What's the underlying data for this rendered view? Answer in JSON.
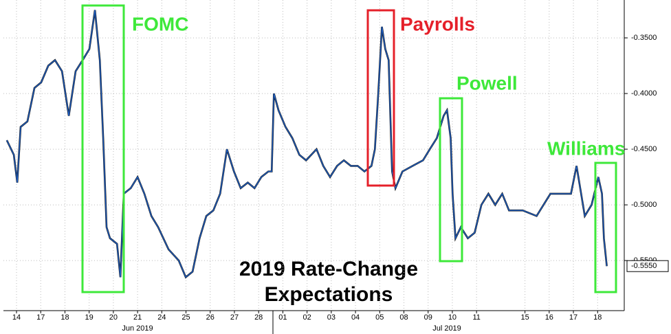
{
  "chart_data": {
    "type": "line",
    "title_lines": [
      "2019 Rate-Change",
      "Expectations"
    ],
    "series": [
      {
        "color": "#1f5fc4",
        "x": [
          -0.4,
          -0.11,
          0.03,
          0.17,
          0.45,
          0.74,
          1.02,
          1.31,
          1.59,
          1.88,
          2.16,
          2.44,
          2.73,
          3.01,
          3.24,
          3.44,
          3.58,
          3.72,
          3.86,
          4.15,
          4.29,
          4.43,
          4.72,
          5.0,
          5.28,
          5.57,
          5.85,
          6.28,
          6.7,
          6.99,
          7.27,
          7.56,
          7.84,
          8.13,
          8.41,
          8.69,
          8.98,
          9.26,
          9.55,
          9.83,
          10.11,
          10.4,
          10.54,
          10.63,
          10.82,
          11.11,
          11.39,
          11.68,
          11.96,
          12.39,
          12.67,
          12.95,
          13.24,
          13.52,
          13.81,
          14.09,
          14.37,
          14.66,
          14.8,
          14.94,
          15.09,
          15.23,
          15.37,
          15.51,
          15.65,
          15.94,
          16.36,
          16.79,
          17.07,
          17.36,
          17.64,
          17.78,
          17.93,
          18.01,
          18.13,
          18.35,
          18.64,
          18.92,
          19.2,
          19.49,
          19.77,
          20.06,
          20.34,
          20.91,
          21.48,
          22.05,
          22.33,
          22.61,
          22.9,
          23.13,
          23.32,
          23.47,
          23.75,
          24.03,
          24.18,
          24.26,
          24.38
        ],
        "values": [
          -0.442,
          -0.455,
          -0.48,
          -0.43,
          -0.425,
          -0.395,
          -0.39,
          -0.375,
          -0.37,
          -0.38,
          -0.42,
          -0.38,
          -0.37,
          -0.36,
          -0.325,
          -0.37,
          -0.44,
          -0.52,
          -0.53,
          -0.535,
          -0.565,
          -0.49,
          -0.485,
          -0.475,
          -0.49,
          -0.51,
          -0.52,
          -0.54,
          -0.55,
          -0.565,
          -0.56,
          -0.53,
          -0.51,
          -0.505,
          -0.49,
          -0.45,
          -0.47,
          -0.485,
          -0.48,
          -0.485,
          -0.475,
          -0.47,
          -0.47,
          -0.4,
          -0.415,
          -0.43,
          -0.44,
          -0.455,
          -0.46,
          -0.45,
          -0.465,
          -0.475,
          -0.465,
          -0.46,
          -0.465,
          -0.465,
          -0.47,
          -0.465,
          -0.45,
          -0.4,
          -0.34,
          -0.36,
          -0.37,
          -0.47,
          -0.485,
          -0.47,
          -0.465,
          -0.46,
          -0.45,
          -0.44,
          -0.42,
          -0.415,
          -0.44,
          -0.49,
          -0.53,
          -0.52,
          -0.53,
          -0.525,
          -0.5,
          -0.49,
          -0.5,
          -0.49,
          -0.505,
          -0.505,
          -0.51,
          -0.49,
          -0.49,
          -0.49,
          -0.49,
          -0.465,
          -0.49,
          -0.51,
          -0.5,
          -0.475,
          -0.49,
          -0.53,
          -0.555
        ]
      }
    ],
    "xlim": [
      -0.54,
      25.1
    ],
    "ylim": [
      -0.316,
      -0.595
    ],
    "xticks": [
      {
        "value": 0,
        "label": "14"
      },
      {
        "value": 1,
        "label": "17"
      },
      {
        "value": 2,
        "label": "18"
      },
      {
        "value": 3,
        "label": "19"
      },
      {
        "value": 4,
        "label": "20"
      },
      {
        "value": 5,
        "label": "21"
      },
      {
        "value": 6,
        "label": "24"
      },
      {
        "value": 7,
        "label": "25"
      },
      {
        "value": 8,
        "label": "26"
      },
      {
        "value": 9,
        "label": "27"
      },
      {
        "value": 10,
        "label": "28"
      },
      {
        "value": 11,
        "label": "01"
      },
      {
        "value": 12,
        "label": "02"
      },
      {
        "value": 13,
        "label": "03"
      },
      {
        "value": 14,
        "label": "04"
      },
      {
        "value": 15,
        "label": "05"
      },
      {
        "value": 16,
        "label": "08"
      },
      {
        "value": 17,
        "label": "09"
      },
      {
        "value": 18,
        "label": "10"
      },
      {
        "value": 19,
        "label": "11"
      },
      {
        "value": 21,
        "label": "15"
      },
      {
        "value": 22,
        "label": "16"
      },
      {
        "value": 23,
        "label": "17"
      },
      {
        "value": 24,
        "label": "18"
      }
    ],
    "yticks": [
      {
        "value": -0.35,
        "label": "-0.3500"
      },
      {
        "value": -0.4,
        "label": "-0.4000"
      },
      {
        "value": -0.45,
        "label": "-0.4500"
      },
      {
        "value": -0.5,
        "label": "-0.5000"
      },
      {
        "value": -0.55,
        "label": "-0.5500"
      }
    ],
    "month_labels": [
      "Jun 2019",
      "Jul 2019"
    ],
    "last_value": {
      "value": -0.555,
      "label": "-0.5550"
    },
    "annotations": [
      {
        "text": "FOMC",
        "color": "#3ee83a"
      },
      {
        "text": "Payrolls",
        "color": "#e5202a"
      },
      {
        "text": "Powell",
        "color": "#3ee83a"
      },
      {
        "text": "Williams",
        "color": "#3ee83a"
      }
    ],
    "grid": true
  }
}
